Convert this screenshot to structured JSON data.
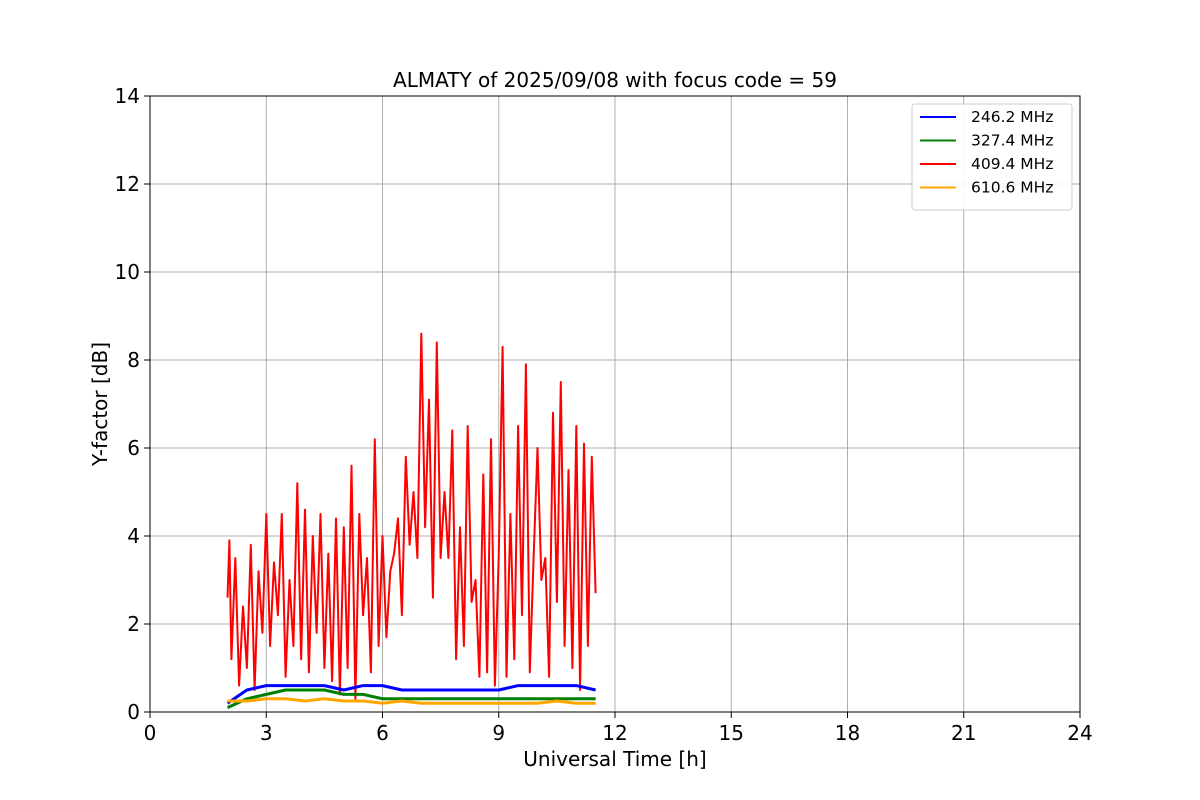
{
  "chart_data": {
    "type": "line",
    "title": "ALMATY of 2025/09/08 with focus code = 59",
    "xlabel": "Universal Time [h]",
    "ylabel": "Y-factor [dB]",
    "xlim": [
      0,
      24
    ],
    "ylim": [
      0,
      14
    ],
    "xticks": [
      0,
      3,
      6,
      9,
      12,
      15,
      18,
      21,
      24
    ],
    "yticks": [
      0,
      2,
      4,
      6,
      8,
      10,
      12,
      14
    ],
    "grid": true,
    "legend_position": "top-right",
    "series": [
      {
        "name": "246.2 MHz",
        "color": "#0000ff",
        "x": [
          2.0,
          2.5,
          3.0,
          3.5,
          4.0,
          4.5,
          5.0,
          5.5,
          6.0,
          6.5,
          7.0,
          7.5,
          8.0,
          8.5,
          9.0,
          9.5,
          10.0,
          10.5,
          11.0,
          11.5
        ],
        "y": [
          0.2,
          0.5,
          0.6,
          0.6,
          0.6,
          0.6,
          0.5,
          0.6,
          0.6,
          0.5,
          0.5,
          0.5,
          0.5,
          0.5,
          0.5,
          0.6,
          0.6,
          0.6,
          0.6,
          0.5
        ]
      },
      {
        "name": "327.4 MHz",
        "color": "#008000",
        "x": [
          2.0,
          2.5,
          3.0,
          3.5,
          4.0,
          4.5,
          5.0,
          5.5,
          6.0,
          6.5,
          7.0,
          7.5,
          8.0,
          8.5,
          9.0,
          9.5,
          10.0,
          10.5,
          11.0,
          11.5
        ],
        "y": [
          0.1,
          0.3,
          0.4,
          0.5,
          0.5,
          0.5,
          0.4,
          0.4,
          0.3,
          0.3,
          0.3,
          0.3,
          0.3,
          0.3,
          0.3,
          0.3,
          0.3,
          0.3,
          0.3,
          0.3
        ]
      },
      {
        "name": "409.4 MHz",
        "color": "#ff0000",
        "x": [
          2.0,
          2.05,
          2.1,
          2.2,
          2.3,
          2.4,
          2.5,
          2.6,
          2.7,
          2.8,
          2.9,
          3.0,
          3.1,
          3.2,
          3.3,
          3.4,
          3.5,
          3.6,
          3.7,
          3.8,
          3.9,
          4.0,
          4.1,
          4.2,
          4.3,
          4.4,
          4.5,
          4.6,
          4.7,
          4.8,
          4.9,
          5.0,
          5.1,
          5.2,
          5.3,
          5.4,
          5.5,
          5.6,
          5.7,
          5.8,
          5.9,
          6.0,
          6.1,
          6.2,
          6.3,
          6.4,
          6.5,
          6.6,
          6.7,
          6.8,
          6.9,
          7.0,
          7.1,
          7.2,
          7.3,
          7.4,
          7.5,
          7.6,
          7.7,
          7.8,
          7.9,
          8.0,
          8.1,
          8.2,
          8.3,
          8.4,
          8.5,
          8.6,
          8.7,
          8.8,
          8.9,
          9.0,
          9.1,
          9.2,
          9.3,
          9.4,
          9.5,
          9.6,
          9.7,
          9.8,
          9.9,
          10.0,
          10.1,
          10.2,
          10.3,
          10.4,
          10.5,
          10.6,
          10.7,
          10.8,
          10.9,
          11.0,
          11.1,
          11.2,
          11.3,
          11.4,
          11.5
        ],
        "y": [
          2.6,
          3.9,
          1.2,
          3.5,
          0.6,
          2.4,
          1.0,
          3.8,
          0.5,
          3.2,
          1.8,
          4.5,
          1.5,
          3.4,
          2.2,
          4.5,
          0.8,
          3.0,
          1.5,
          5.2,
          1.2,
          4.6,
          0.9,
          4.0,
          1.8,
          4.5,
          1.0,
          3.6,
          0.7,
          4.4,
          0.4,
          4.2,
          1.0,
          5.6,
          0.3,
          4.5,
          2.2,
          3.5,
          0.9,
          6.2,
          1.5,
          4.0,
          1.7,
          3.2,
          3.6,
          4.4,
          2.2,
          5.8,
          3.8,
          5.0,
          3.5,
          8.6,
          4.2,
          7.1,
          2.6,
          8.4,
          3.5,
          5.0,
          3.5,
          6.4,
          1.2,
          4.2,
          1.5,
          6.5,
          2.5,
          3.0,
          0.8,
          5.4,
          0.9,
          6.2,
          0.6,
          3.6,
          8.3,
          0.8,
          4.5,
          1.2,
          6.5,
          2.2,
          7.9,
          0.9,
          3.5,
          6.0,
          3.0,
          3.5,
          0.8,
          6.8,
          2.5,
          7.5,
          1.5,
          5.5,
          1.0,
          6.5,
          0.5,
          6.1,
          1.5,
          5.8,
          2.7
        ]
      },
      {
        "name": "610.6 MHz",
        "color": "#ffa500",
        "x": [
          2.0,
          2.5,
          3.0,
          3.5,
          4.0,
          4.5,
          5.0,
          5.5,
          6.0,
          6.5,
          7.0,
          7.5,
          8.0,
          8.5,
          9.0,
          9.5,
          10.0,
          10.5,
          11.0,
          11.5
        ],
        "y": [
          0.25,
          0.25,
          0.3,
          0.3,
          0.25,
          0.3,
          0.25,
          0.25,
          0.2,
          0.25,
          0.2,
          0.2,
          0.2,
          0.2,
          0.2,
          0.2,
          0.2,
          0.25,
          0.2,
          0.2
        ]
      }
    ]
  }
}
